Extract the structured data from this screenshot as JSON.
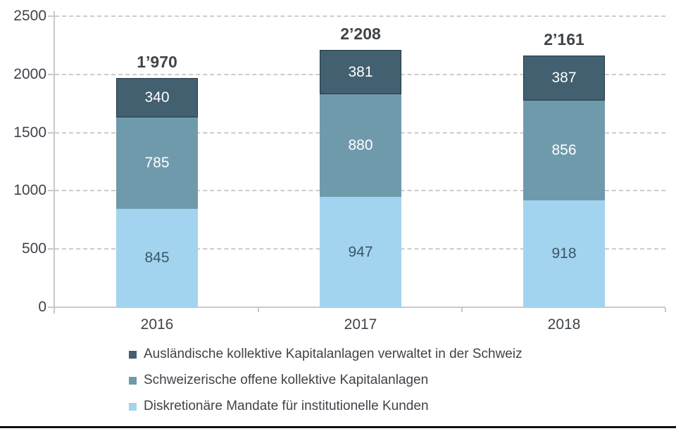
{
  "chart_data": {
    "type": "bar",
    "stacked": true,
    "categories": [
      "2016",
      "2017",
      "2018"
    ],
    "series": [
      {
        "name": "Diskretionäre Mandate für institutionelle Kunden",
        "color": "#a3d4ef",
        "label_color": "#3a5668",
        "outlined": false,
        "values": [
          845,
          947,
          918
        ]
      },
      {
        "name": "Schweizerische offene kollektive Kapitalanlagen",
        "color": "#6f9aac",
        "label_color": "#ffffff",
        "outlined": false,
        "values": [
          785,
          880,
          856
        ]
      },
      {
        "name": "Ausländische kollektive Kapitalanlagen verwaltet in der Schweiz",
        "color": "#42606f",
        "label_color": "#ffffff",
        "outlined": true,
        "values": [
          340,
          381,
          387
        ]
      }
    ],
    "totals": [
      "1’970",
      "2’208",
      "2’161"
    ],
    "title": "",
    "xlabel": "",
    "ylabel": "",
    "ylim": [
      0,
      2500
    ],
    "yticks": [
      0,
      500,
      1000,
      1500,
      2000,
      2500
    ],
    "grid": "dashed-horizontal",
    "legend_position": "bottom"
  },
  "legend": {
    "items": [
      {
        "label": "Ausländische kollektive Kapitalanlagen verwaltet in der Schweiz",
        "color": "#42606f"
      },
      {
        "label": "Schweizerische offene kollektive Kapitalanlagen",
        "color": "#6f9aac"
      },
      {
        "label": "Diskretionäre Mandate für institutionelle Kunden",
        "color": "#a3d4ef"
      }
    ]
  },
  "colors": {
    "axis": "#c9c9c9",
    "grid": "#cccccc",
    "text": "#3f4449",
    "dark_segment_border": "#243743",
    "bottom_rule": "#101010",
    "background": "#ffffff"
  }
}
